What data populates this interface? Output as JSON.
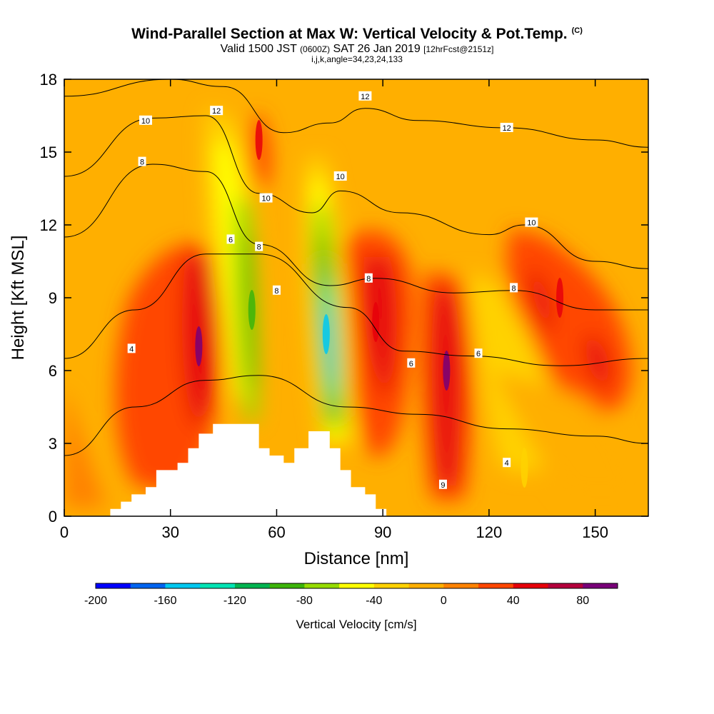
{
  "header": {
    "title": "Wind-Parallel Section at Max W: Vertical Velocity & Pot.Temp.",
    "copyright": "(C)",
    "valid_prefix": "Valid 1500 JST",
    "valid_utc": "(0600Z)",
    "valid_date": "SAT 26 Jan 2019",
    "forecast": "[12hrFcst@2151z]",
    "indices": "i,j,k,angle=34,23,24,133"
  },
  "chart_data": {
    "type": "heatmap",
    "xlabel": "Distance [nm]",
    "ylabel": "Height [Kft MSL]",
    "xlim": [
      0,
      165
    ],
    "ylim": [
      0,
      18
    ],
    "xticks": [
      0,
      30,
      60,
      90,
      120,
      150
    ],
    "yticks": [
      0,
      3,
      6,
      9,
      12,
      15,
      18
    ],
    "colorbar": {
      "label": "Vertical Velocity [cm/s]",
      "min": -200,
      "max": 100,
      "step": 20,
      "tick_values": [
        -200,
        -160,
        -120,
        -80,
        -40,
        0,
        40,
        80
      ],
      "colors": [
        "#0000ff",
        "#0064f0",
        "#00c8f0",
        "#00e4b4",
        "#00b450",
        "#3cb40a",
        "#96dc00",
        "#ffff00",
        "#ffd200",
        "#ffaf00",
        "#ff8200",
        "#ff4600",
        "#e6000a",
        "#b4003c",
        "#780078"
      ]
    },
    "velocity_features": [
      {
        "x": 53,
        "y": 8.5,
        "value": -100
      },
      {
        "x": 74,
        "y": 7.5,
        "value": -160
      },
      {
        "x": 38,
        "y": 7,
        "value": 80
      },
      {
        "x": 108,
        "y": 6,
        "value": 100
      },
      {
        "x": 88,
        "y": 8,
        "value": 50
      },
      {
        "x": 140,
        "y": 9,
        "value": 40
      },
      {
        "x": 55,
        "y": 15.5,
        "value": 40
      },
      {
        "x": 130,
        "y": 2,
        "value": -30
      }
    ],
    "theta_contours": [
      {
        "label": "4",
        "points": [
          [
            0,
            2.5
          ],
          [
            20,
            4.5
          ],
          [
            40,
            5.6
          ],
          [
            55,
            5.8
          ],
          [
            80,
            4.5
          ],
          [
            100,
            4.2
          ],
          [
            125,
            3.6
          ],
          [
            150,
            3.3
          ],
          [
            165,
            3.0
          ]
        ]
      },
      {
        "label": "6",
        "points": [
          [
            0,
            6.5
          ],
          [
            20,
            8.5
          ],
          [
            40,
            10.8
          ],
          [
            55,
            10.8
          ],
          [
            80,
            8.6
          ],
          [
            96,
            6.8
          ],
          [
            115,
            6.6
          ],
          [
            140,
            6.2
          ],
          [
            165,
            6.5
          ]
        ]
      },
      {
        "label": "8",
        "points": [
          [
            0,
            11.5
          ],
          [
            25,
            14.5
          ],
          [
            40,
            14.2
          ],
          [
            55,
            11.2
          ],
          [
            75,
            9.5
          ],
          [
            88,
            9.8
          ],
          [
            110,
            9.2
          ],
          [
            127,
            9.3
          ],
          [
            150,
            8.5
          ],
          [
            165,
            8.5
          ]
        ]
      },
      {
        "label": "10",
        "points": [
          [
            0,
            14.0
          ],
          [
            25,
            16.4
          ],
          [
            40,
            16.5
          ],
          [
            55,
            13.3
          ],
          [
            70,
            12.5
          ],
          [
            78,
            13.4
          ],
          [
            95,
            12.5
          ],
          [
            120,
            11.6
          ],
          [
            130,
            12.0
          ],
          [
            150,
            10.5
          ],
          [
            165,
            10.2
          ]
        ]
      },
      {
        "label": "12",
        "points": [
          [
            0,
            17.3
          ],
          [
            30,
            18.0
          ],
          [
            45,
            17.7
          ],
          [
            62,
            15.8
          ],
          [
            75,
            16.2
          ],
          [
            85,
            16.8
          ],
          [
            100,
            16.3
          ],
          [
            125,
            16.0
          ],
          [
            150,
            15.5
          ],
          [
            165,
            15.2
          ]
        ]
      }
    ],
    "theta_labels": [
      {
        "text": "10",
        "x": 23,
        "y": 16.3
      },
      {
        "text": "8",
        "x": 22,
        "y": 14.6
      },
      {
        "text": "12",
        "x": 43,
        "y": 16.7
      },
      {
        "text": "10",
        "x": 57,
        "y": 13.1
      },
      {
        "text": "6",
        "x": 47,
        "y": 11.4
      },
      {
        "text": "8",
        "x": 55,
        "y": 11.1
      },
      {
        "text": "8",
        "x": 60,
        "y": 9.3
      },
      {
        "text": "4",
        "x": 19,
        "y": 6.9
      },
      {
        "text": "12",
        "x": 85,
        "y": 17.3
      },
      {
        "text": "10",
        "x": 78,
        "y": 14.0
      },
      {
        "text": "12",
        "x": 125,
        "y": 16.0
      },
      {
        "text": "10",
        "x": 132,
        "y": 12.1
      },
      {
        "text": "8",
        "x": 86,
        "y": 9.8
      },
      {
        "text": "8",
        "x": 127,
        "y": 9.4
      },
      {
        "text": "6",
        "x": 98,
        "y": 6.3
      },
      {
        "text": "6",
        "x": 117,
        "y": 6.7
      },
      {
        "text": "4",
        "x": 125,
        "y": 2.2
      },
      {
        "text": "9",
        "x": 107,
        "y": 1.3
      }
    ],
    "terrain": [
      [
        0,
        0
      ],
      [
        13,
        0
      ],
      [
        13,
        0.3
      ],
      [
        16,
        0.3
      ],
      [
        16,
        0.6
      ],
      [
        19,
        0.6
      ],
      [
        19,
        0.9
      ],
      [
        23,
        0.9
      ],
      [
        23,
        1.2
      ],
      [
        26,
        1.2
      ],
      [
        26,
        1.9
      ],
      [
        32,
        1.9
      ],
      [
        32,
        2.2
      ],
      [
        35,
        2.2
      ],
      [
        35,
        2.8
      ],
      [
        38,
        2.8
      ],
      [
        38,
        3.4
      ],
      [
        42,
        3.4
      ],
      [
        42,
        3.8
      ],
      [
        55,
        3.8
      ],
      [
        55,
        2.8
      ],
      [
        58,
        2.8
      ],
      [
        58,
        2.5
      ],
      [
        62,
        2.5
      ],
      [
        62,
        2.2
      ],
      [
        65,
        2.2
      ],
      [
        65,
        2.8
      ],
      [
        69,
        2.8
      ],
      [
        69,
        3.5
      ],
      [
        75,
        3.5
      ],
      [
        75,
        2.8
      ],
      [
        78,
        2.8
      ],
      [
        78,
        1.9
      ],
      [
        81,
        1.9
      ],
      [
        81,
        1.2
      ],
      [
        85,
        1.2
      ],
      [
        85,
        0.9
      ],
      [
        88,
        0.9
      ],
      [
        88,
        0.3
      ],
      [
        91,
        0.3
      ],
      [
        91,
        0
      ]
    ]
  }
}
